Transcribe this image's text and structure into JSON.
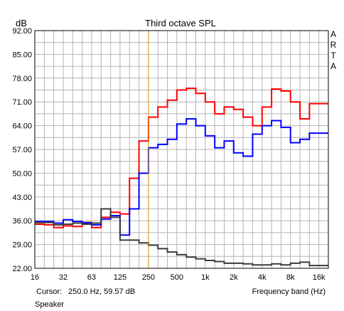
{
  "chart_data": {
    "type": "line",
    "title": "Third octave SPL",
    "ylabel": "dB",
    "xlabel": "Frequency band (Hz)",
    "watermark": "ARTA",
    "ylim": [
      22,
      92
    ],
    "y_ticks": [
      "92.00",
      "85.00",
      "78.00",
      "71.00",
      "64.00",
      "57.00",
      "50.00",
      "43.00",
      "36.00",
      "29.00",
      "22.00"
    ],
    "x_tick_labels": [
      "16",
      "32",
      "63",
      "125",
      "250",
      "500",
      "1k",
      "2k",
      "4k",
      "8k",
      "16k"
    ],
    "grid": true,
    "bands": [
      "16",
      "20",
      "25",
      "31.5",
      "40",
      "50",
      "63",
      "80",
      "100",
      "125",
      "160",
      "200",
      "250",
      "315",
      "400",
      "500",
      "630",
      "800",
      "1k",
      "1.25k",
      "1.6k",
      "2k",
      "2.5k",
      "3.15k",
      "4k",
      "5k",
      "6.3k",
      "8k",
      "10k",
      "12.5k",
      "16k"
    ],
    "series": [
      {
        "color": "#ff0000",
        "values": [
          35.0,
          34.8,
          34.0,
          34.5,
          34.3,
          35.5,
          34.0,
          37.0,
          38.5,
          38.0,
          48.5,
          59.5,
          66.5,
          69.5,
          71.5,
          74.5,
          75.0,
          73.5,
          71.0,
          67.5,
          69.5,
          68.8,
          66.5,
          64.0,
          69.5,
          74.8,
          74.2,
          71.0,
          66.0,
          70.5,
          70.5
        ]
      },
      {
        "color": "#0000ff",
        "values": [
          35.8,
          35.8,
          35.3,
          36.3,
          35.8,
          35.4,
          34.8,
          36.5,
          37.5,
          31.8,
          39.5,
          50.0,
          57.5,
          58.5,
          60.0,
          64.5,
          66.0,
          64.0,
          61.0,
          57.5,
          59.5,
          56.0,
          55.0,
          61.5,
          64.0,
          65.5,
          63.5,
          59.0,
          60.0,
          61.8,
          61.8
        ]
      },
      {
        "color": "#3c3c3c",
        "values": [
          35.5,
          35.5,
          34.8,
          35.0,
          35.3,
          35.0,
          35.3,
          39.5,
          37.0,
          30.3,
          30.3,
          29.5,
          28.8,
          27.8,
          26.8,
          26.0,
          25.3,
          24.8,
          24.3,
          24.0,
          23.5,
          23.5,
          23.3,
          23.0,
          23.0,
          23.3,
          23.0,
          23.5,
          23.8,
          22.8,
          22.8
        ]
      }
    ],
    "cursor": {
      "x_band_index": 12,
      "color": "#d4a017"
    }
  },
  "footer": {
    "cursor_label": "Cursor:",
    "cursor_value": "250.0 Hz, 59.57 dB",
    "legend_name": "Speaker"
  }
}
